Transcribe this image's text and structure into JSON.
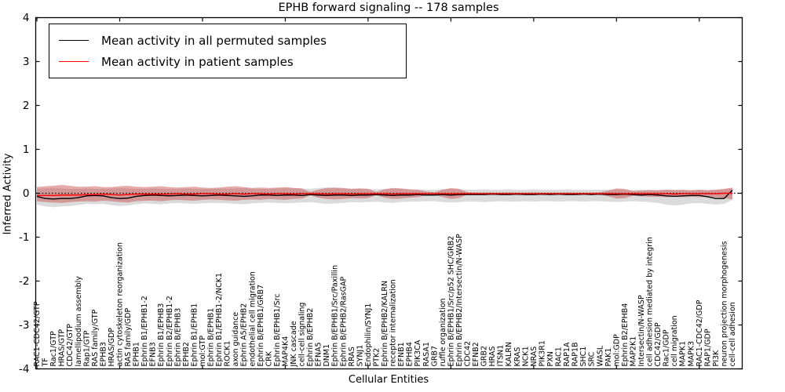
{
  "chart_data": {
    "type": "line",
    "title": "EPHB forward signaling -- 178 samples",
    "xlabel": "Cellular Entities",
    "ylabel": "Inferred Activity",
    "ylim": [
      -4,
      4
    ],
    "yticks": [
      -4,
      -3,
      -2,
      -1,
      0,
      1,
      2,
      3,
      4
    ],
    "grid": false,
    "legend_position": "upper-left",
    "zero_line": "dotted",
    "categories": [
      "RAC1-CDC42/GTP",
      "TF",
      "Rac1/GTP",
      "HRAS/GTP",
      "CDC42/GTP",
      "lamellipodium assembly",
      "Rap1/GTP",
      "RAS family/GTP",
      "EPHB3",
      "HRAS/GDP",
      "actin cytoskeleton reorganization",
      "RAS family/GDP",
      "EPHB1",
      "Ephrin B1/EPHB1-2",
      "EFNB3",
      "Ephrin B1/EPHB3",
      "Ephrin B2/EPHB1-2",
      "Ephrin B/EPHB3",
      "EPHB2",
      "Ephrin B1/EPHB1",
      "mol:GTP",
      "Ephrin B/EPHB1",
      "Ephrin B1/EPHB1-2/NCK1",
      "ROCK1",
      "axon guidance",
      "Ephrin A5/EPHB2",
      "endothelial cell migration",
      "Ephrin B/EPHB1/GRB7",
      "CRK",
      "Ephrin B/EPHB1/Src",
      "MAP4K4",
      "JNK cascade",
      "cell-cell signaling",
      "Ephrin B/EPHB2",
      "EFNA5",
      "DNM1",
      "Ephrin B/EPHB1/Src/Paxillin",
      "Ephrin B/EPHB2/RasGAP",
      "RRAS",
      "SYNJ1",
      "Endophilin/SYNJ1",
      "PTK2",
      "Ephrin B/EPHB2/KALRN",
      "receptor internalization",
      "EFNB1",
      "EPHB4",
      "PIK3CA",
      "RASA1",
      "GRB7",
      "ruffle organization",
      "Ephrin B/EPHB1/Src/p52 SHC/GRB2",
      "Ephrin B/EPHB2/Intersectin/N-WASP",
      "CDC42",
      "EFNB2",
      "GRB2",
      "HRAS",
      "ITSN1",
      "KALRN",
      "KRAS",
      "NCK1",
      "NRAS",
      "PIK3R1",
      "PXN",
      "RAC1",
      "RAP1A",
      "RAP1B",
      "SHC1",
      "SRC",
      "WASL",
      "PAK1",
      "mol:GDP",
      "Ephrin B2/EPHB4",
      "MAP2K1",
      "Intersectin/N-WASP",
      "cell adhesion mediated by integrin",
      "CDC42/GDP",
      "Rac1/GDP",
      "cell migration",
      "MAPK1",
      "MAPK3",
      "RAC1-CDC42/GDP",
      "RAP1/GDP",
      "PI3K",
      "neuron projection morphogenesis",
      "cell-cell adhesion"
    ],
    "series": [
      {
        "name": "Mean activity in all permuted samples",
        "color": "#000000",
        "band_color": "#aaaaaa",
        "band_opacity": 0.42,
        "values": [
          -0.07,
          -0.12,
          -0.13,
          -0.12,
          -0.12,
          -0.1,
          -0.06,
          -0.05,
          -0.06,
          -0.1,
          -0.12,
          -0.11,
          -0.07,
          -0.05,
          -0.04,
          -0.05,
          -0.06,
          -0.05,
          -0.04,
          -0.05,
          -0.06,
          -0.05,
          -0.04,
          -0.05,
          -0.06,
          -0.07,
          -0.06,
          -0.04,
          -0.04,
          -0.05,
          -0.04,
          -0.04,
          -0.05,
          -0.03,
          -0.04,
          -0.05,
          -0.04,
          -0.04,
          -0.05,
          -0.04,
          -0.04,
          -0.03,
          -0.04,
          -0.05,
          -0.04,
          -0.04,
          -0.03,
          -0.04,
          -0.04,
          -0.03,
          -0.04,
          -0.03,
          -0.03,
          -0.03,
          -0.03,
          -0.02,
          -0.03,
          -0.03,
          -0.02,
          -0.03,
          -0.03,
          -0.02,
          -0.03,
          -0.02,
          -0.03,
          -0.03,
          -0.02,
          -0.03,
          -0.02,
          -0.03,
          -0.03,
          -0.02,
          -0.03,
          -0.04,
          -0.03,
          -0.04,
          -0.06,
          -0.07,
          -0.06,
          -0.05,
          -0.05,
          -0.08,
          -0.12,
          -0.12,
          0.07
        ],
        "band_upper": [
          0.1,
          0.11,
          0.12,
          0.11,
          0.1,
          0.1,
          0.11,
          0.1,
          0.1,
          0.11,
          0.12,
          0.11,
          0.1,
          0.1,
          0.11,
          0.1,
          0.1,
          0.1,
          0.11,
          0.1,
          0.1,
          0.1,
          0.11,
          0.1,
          0.11,
          0.12,
          0.11,
          0.1,
          0.1,
          0.11,
          0.12,
          0.12,
          0.11,
          0.1,
          0.12,
          0.13,
          0.12,
          0.11,
          0.1,
          0.11,
          0.1,
          0.09,
          0.1,
          0.11,
          0.1,
          0.09,
          0.09,
          0.08,
          0.08,
          0.09,
          0.1,
          0.09,
          0.08,
          0.08,
          0.09,
          0.08,
          0.08,
          0.09,
          0.08,
          0.08,
          0.09,
          0.08,
          0.08,
          0.08,
          0.09,
          0.08,
          0.08,
          0.08,
          0.08,
          0.08,
          0.09,
          0.08,
          0.07,
          0.08,
          0.08,
          0.07,
          0.08,
          0.08,
          0.07,
          0.07,
          0.08,
          0.07,
          0.08,
          0.09,
          0.12
        ],
        "band_lower": [
          -0.26,
          -0.3,
          -0.32,
          -0.3,
          -0.29,
          -0.27,
          -0.24,
          -0.25,
          -0.24,
          -0.27,
          -0.29,
          -0.28,
          -0.25,
          -0.23,
          -0.24,
          -0.25,
          -0.23,
          -0.22,
          -0.23,
          -0.24,
          -0.23,
          -0.22,
          -0.22,
          -0.23,
          -0.24,
          -0.25,
          -0.23,
          -0.22,
          -0.21,
          -0.22,
          -0.23,
          -0.22,
          -0.21,
          -0.2,
          -0.22,
          -0.24,
          -0.23,
          -0.22,
          -0.2,
          -0.21,
          -0.2,
          -0.19,
          -0.21,
          -0.22,
          -0.2,
          -0.19,
          -0.19,
          -0.18,
          -0.18,
          -0.2,
          -0.21,
          -0.2,
          -0.19,
          -0.19,
          -0.2,
          -0.19,
          -0.18,
          -0.19,
          -0.19,
          -0.18,
          -0.19,
          -0.18,
          -0.18,
          -0.19,
          -0.18,
          -0.18,
          -0.19,
          -0.18,
          -0.18,
          -0.19,
          -0.2,
          -0.19,
          -0.18,
          -0.19,
          -0.2,
          -0.22,
          -0.26,
          -0.28,
          -0.26,
          -0.23,
          -0.22,
          -0.24,
          -0.26,
          -0.24,
          -0.15
        ]
      },
      {
        "name": "Mean activity in patient samples",
        "color": "#ff0000",
        "band_color": "#cc4444",
        "band_opacity": 0.45,
        "values": [
          -0.05,
          -0.05,
          -0.05,
          -0.04,
          -0.04,
          -0.04,
          -0.03,
          -0.03,
          -0.02,
          -0.03,
          -0.04,
          -0.03,
          -0.02,
          -0.02,
          -0.02,
          -0.02,
          -0.02,
          -0.01,
          -0.02,
          -0.02,
          -0.01,
          -0.01,
          -0.02,
          -0.02,
          -0.01,
          -0.02,
          -0.01,
          -0.01,
          -0.02,
          -0.01,
          -0.01,
          -0.02,
          -0.01,
          -0.01,
          -0.01,
          -0.02,
          -0.01,
          -0.01,
          -0.02,
          -0.01,
          -0.01,
          -0.01,
          -0.01,
          -0.02,
          -0.01,
          -0.01,
          -0.01,
          -0.01,
          -0.01,
          -0.01,
          -0.01,
          -0.01,
          -0.01,
          -0.01,
          -0.01,
          -0.01,
          -0.01,
          -0.01,
          -0.01,
          -0.01,
          -0.01,
          -0.01,
          -0.01,
          -0.01,
          -0.01,
          -0.01,
          -0.01,
          -0.01,
          -0.01,
          -0.01,
          -0.01,
          -0.01,
          -0.01,
          -0.01,
          -0.01,
          -0.01,
          -0.01,
          -0.02,
          -0.01,
          -0.01,
          -0.01,
          -0.01,
          -0.01,
          0.0,
          0.0
        ],
        "band_upper": [
          0.14,
          0.16,
          0.17,
          0.19,
          0.17,
          0.15,
          0.15,
          0.16,
          0.14,
          0.14,
          0.16,
          0.17,
          0.15,
          0.14,
          0.15,
          0.16,
          0.14,
          0.13,
          0.14,
          0.15,
          0.13,
          0.12,
          0.13,
          0.15,
          0.16,
          0.14,
          0.12,
          0.13,
          0.12,
          0.13,
          0.14,
          0.12,
          0.11,
          0.03,
          0.08,
          0.12,
          0.13,
          0.12,
          0.1,
          0.11,
          0.1,
          0.03,
          0.09,
          0.12,
          0.11,
          0.09,
          0.08,
          0.04,
          0.02,
          0.08,
          0.12,
          0.1,
          0.02,
          0.015,
          0.015,
          0.015,
          0.015,
          0.015,
          0.015,
          0.015,
          0.015,
          0.015,
          0.015,
          0.015,
          0.015,
          0.015,
          0.015,
          0.015,
          0.02,
          0.06,
          0.11,
          0.1,
          0.05,
          0.06,
          0.07,
          0.07,
          0.08,
          0.07,
          0.08,
          0.07,
          0.08,
          0.07,
          0.08,
          0.1,
          0.13
        ],
        "band_lower": [
          -0.18,
          -0.2,
          -0.21,
          -0.22,
          -0.2,
          -0.19,
          -0.18,
          -0.19,
          -0.17,
          -0.18,
          -0.2,
          -0.21,
          -0.18,
          -0.17,
          -0.17,
          -0.18,
          -0.16,
          -0.15,
          -0.16,
          -0.17,
          -0.15,
          -0.14,
          -0.15,
          -0.16,
          -0.17,
          -0.15,
          -0.14,
          -0.15,
          -0.13,
          -0.14,
          -0.15,
          -0.13,
          -0.12,
          -0.05,
          -0.1,
          -0.13,
          -0.14,
          -0.13,
          -0.11,
          -0.12,
          -0.11,
          -0.05,
          -0.1,
          -0.13,
          -0.12,
          -0.1,
          -0.09,
          -0.05,
          -0.03,
          -0.09,
          -0.13,
          -0.11,
          -0.03,
          -0.02,
          -0.02,
          -0.02,
          -0.02,
          -0.02,
          -0.02,
          -0.02,
          -0.02,
          -0.02,
          -0.02,
          -0.02,
          -0.02,
          -0.02,
          -0.02,
          -0.02,
          -0.03,
          -0.07,
          -0.12,
          -0.11,
          -0.06,
          -0.07,
          -0.08,
          -0.08,
          -0.09,
          -0.08,
          -0.09,
          -0.08,
          -0.09,
          -0.08,
          -0.09,
          -0.11,
          -0.14
        ]
      }
    ]
  }
}
